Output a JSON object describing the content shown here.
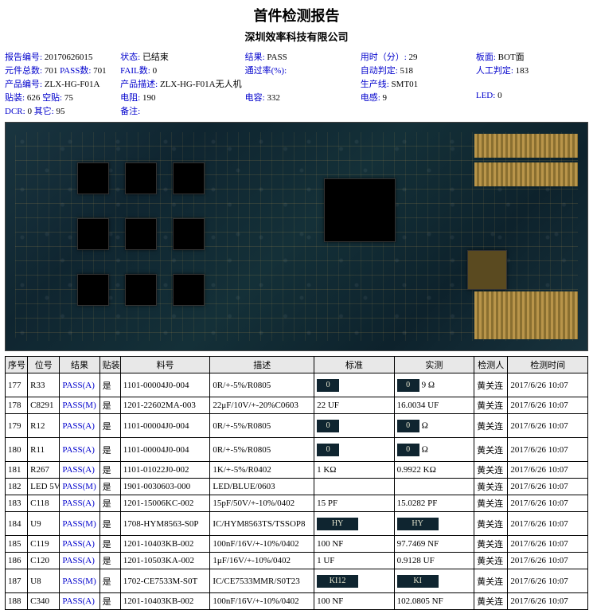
{
  "title": "首件检测报告",
  "subtitle": "深圳效率科技有限公司",
  "title_fontsize": 18,
  "subtitle_fontsize": 13,
  "info": {
    "报告编号": "20170626015",
    "状态": "已结束",
    "结果": "PASS",
    "用时（分）": "29",
    "板面": "BOT面",
    "元件总数": "701",
    "PASS数": "701",
    "FAIL数": "0",
    "通过率(%)": "",
    "自动判定": "518",
    "人工判定": "183",
    "产品编号": "ZLX-HG-F01A",
    "产品描述": "ZLX-HG-F01A无人机",
    "生产线": "SMT01",
    "贴装": "626",
    "空贴": "75",
    "电阻": "190",
    "电容": "332",
    "电感": "9",
    "LED": "0",
    "DCR": "0",
    "其它": "95",
    "备注": ""
  },
  "info_label_color": "#0000cc",
  "columns": [
    "序号",
    "位号",
    "结果",
    "贴装",
    "料号",
    "描述",
    "标准",
    "实测",
    "检测人",
    "检测时间"
  ],
  "pass_color": "#0000cc",
  "thumb_bg": "#0f2530",
  "rows": [
    {
      "seq": "177",
      "pos": "R33",
      "res": "PASS(A)",
      "smt": "是",
      "part": "1101-00004J0-004",
      "desc": "0R/+-5%/R0805",
      "std_img": "0",
      "std": "",
      "act_img": "0",
      "act": "9 Ω",
      "chk": "黄关连",
      "time": "2017/6/26 10:07",
      "tall": true
    },
    {
      "seq": "178",
      "pos": "C8291",
      "res": "PASS(M)",
      "smt": "是",
      "part": "1201-22602MA-003",
      "desc": "22μF/10V/+-20%C0603",
      "std_img": "",
      "std": "22 UF",
      "act_img": "",
      "act": "16.0034 UF",
      "chk": "黄关连",
      "time": "2017/6/26 10:07"
    },
    {
      "seq": "179",
      "pos": "R12",
      "res": "PASS(A)",
      "smt": "是",
      "part": "1101-00004J0-004",
      "desc": "0R/+-5%/R0805",
      "std_img": "0",
      "std": "",
      "act_img": "0",
      "act": "Ω",
      "chk": "黄关连",
      "time": "2017/6/26 10:07",
      "tall": true
    },
    {
      "seq": "180",
      "pos": "R11",
      "res": "PASS(A)",
      "smt": "是",
      "part": "1101-00004J0-004",
      "desc": "0R/+-5%/R0805",
      "std_img": "0",
      "std": "",
      "act_img": "0",
      "act": "Ω",
      "chk": "黄关连",
      "time": "2017/6/26 10:07",
      "tall": true
    },
    {
      "seq": "181",
      "pos": "R267",
      "res": "PASS(A)",
      "smt": "是",
      "part": "1101-01022J0-002",
      "desc": "1K/+-5%/R0402",
      "std_img": "",
      "std": "1 KΩ",
      "act_img": "",
      "act": "0.9922 KΩ",
      "chk": "黄关连",
      "time": "2017/6/26 10:07"
    },
    {
      "seq": "182",
      "pos": "LED 5V",
      "res": "PASS(M)",
      "smt": "是",
      "part": "1901-0030603-000",
      "desc": "LED/BLUE/0603",
      "std_img": "",
      "std": "",
      "act_img": "",
      "act": "",
      "chk": "黄关连",
      "time": "2017/6/26 10:07"
    },
    {
      "seq": "183",
      "pos": "C118",
      "res": "PASS(A)",
      "smt": "是",
      "part": "1201-15006KC-002",
      "desc": "15pF/50V/+-10%/0402",
      "std_img": "",
      "std": "15 PF",
      "act_img": "",
      "act": "15.0282 PF",
      "chk": "黄关连",
      "time": "2017/6/26 10:07"
    },
    {
      "seq": "184",
      "pos": "U9",
      "res": "PASS(M)",
      "smt": "是",
      "part": "1708-HYM8563-S0P",
      "desc": "IC/HYM8563TS/TSSOP8",
      "std_img": "HY",
      "std": "",
      "act_img": "HY",
      "act": "",
      "chk": "黄关连",
      "time": "2017/6/26 10:07",
      "tall": true,
      "wide": true
    },
    {
      "seq": "185",
      "pos": "C119",
      "res": "PASS(A)",
      "smt": "是",
      "part": "1201-10403KB-002",
      "desc": "100nF/16V/+-10%/0402",
      "std_img": "",
      "std": "100 NF",
      "act_img": "",
      "act": "97.7469 NF",
      "chk": "黄关连",
      "time": "2017/6/26 10:07"
    },
    {
      "seq": "186",
      "pos": "C120",
      "res": "PASS(A)",
      "smt": "是",
      "part": "1201-10503KA-002",
      "desc": "1μF/16V/+-10%/0402",
      "std_img": "",
      "std": "1 UF",
      "act_img": "",
      "act": "0.9128 UF",
      "chk": "黄关连",
      "time": "2017/6/26 10:07"
    },
    {
      "seq": "187",
      "pos": "U8",
      "res": "PASS(M)",
      "smt": "是",
      "part": "1702-CE7533M-S0T",
      "desc": "IC/CE7533MMR/S0T23",
      "std_img": "KI12",
      "std": "",
      "act_img": "KI",
      "act": "",
      "chk": "黄关连",
      "time": "2017/6/26 10:07",
      "tall": true,
      "wide": true
    },
    {
      "seq": "188",
      "pos": "C340",
      "res": "PASS(A)",
      "smt": "是",
      "part": "1201-10403KB-002",
      "desc": "100nF/16V/+-10%/0402",
      "std_img": "",
      "std": "100 NF",
      "act_img": "",
      "act": "102.0805 NF",
      "chk": "黄关连",
      "time": "2017/6/26 10:07"
    }
  ]
}
